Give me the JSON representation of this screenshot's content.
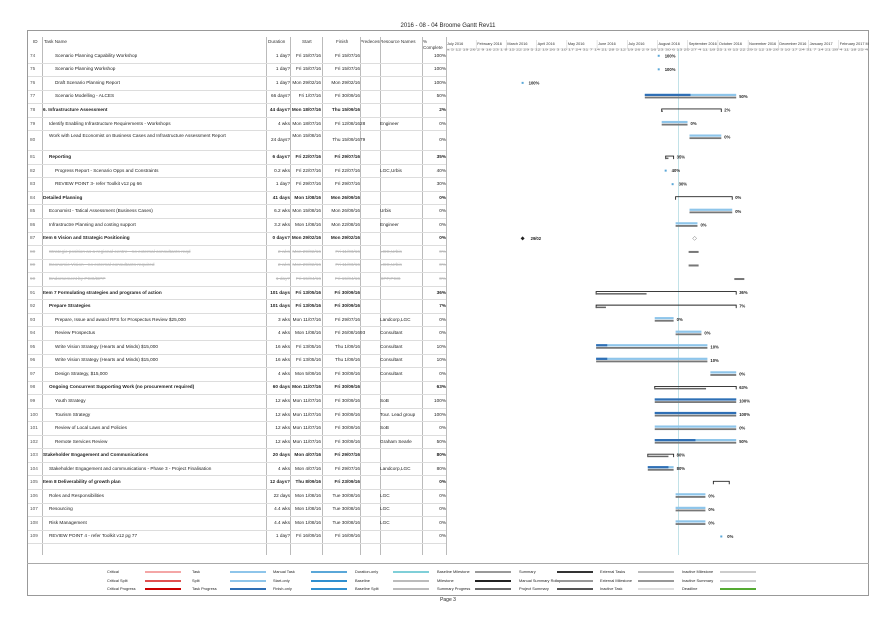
{
  "title": "2016 - 08 - 04 Broome Gantt Rev11",
  "columns": {
    "id": "ID",
    "name": "Task Name",
    "duration": "Duration",
    "start": "Start",
    "finish": "Finish",
    "predecessors": "Predecessors",
    "resources": "Resource Names",
    "pct": "% Complete"
  },
  "timescale": {
    "months": [
      "July 2016",
      "February 2016",
      "March 2016",
      "April 2016",
      "May 2016",
      "June 2016",
      "July 2016",
      "August 2016",
      "September 2016",
      "October 2016",
      "November 2016",
      "December 2016",
      "January 2017",
      "February 2017 M"
    ],
    "days": "s 5 12 19 26 2 9 16 23 1 8 15 22 29 5 12 19 26 3 10 17 24 31 7 14 21 28 5 12 19 26 2 9 16 23 30 6 13 20 27 4 11 18 25 1 8 15 22 29 5 12 19 26 3 10 17 24 31 7 14 21 28 4 11 18 25 4"
  },
  "rows": [
    {
      "id": "74",
      "name": "Scenario Planning Capability Workshop",
      "dur": "1 day?",
      "start": "Fri 15/07/16",
      "fin": "Fri 15/07/16",
      "pred": "",
      "res": "",
      "pct": "100%",
      "indent": 2,
      "style": "normal",
      "lbl": "100%"
    },
    {
      "id": "75",
      "name": "Scenario Planning Workshop",
      "dur": "1 day?",
      "start": "Fri 15/07/16",
      "fin": "Fri 15/07/16",
      "pred": "",
      "res": "",
      "pct": "100%",
      "indent": 2,
      "style": "normal",
      "lbl": "100%"
    },
    {
      "id": "76",
      "name": "Draft Scenario Planning Report",
      "dur": "1 day?",
      "start": "Mon 29/02/16",
      "fin": "Mon 29/02/16",
      "pred": "",
      "res": "",
      "pct": "100%",
      "indent": 2,
      "style": "normal",
      "lbl": "100%"
    },
    {
      "id": "77",
      "name": "Scenario Modelling - ALCES",
      "dur": "66 days?",
      "start": "Fri 1/07/16",
      "fin": "Fri 30/09/16",
      "pred": "",
      "res": "",
      "pct": "50%",
      "indent": 2,
      "style": "normal",
      "lbl": "50%"
    },
    {
      "id": "78",
      "name": "6. Infrastructure Assessment",
      "dur": "44 days?",
      "start": "Mon 18/07/16",
      "fin": "Thu 15/09/16",
      "pred": "",
      "res": "",
      "pct": "2%",
      "indent": 0,
      "style": "bold",
      "lbl": "2%"
    },
    {
      "id": "79",
      "name": "Identify Enabling Infrastructure Requirements - Workshops",
      "dur": "4 wks",
      "start": "Mon 18/07/16",
      "fin": "Fri 12/08/16",
      "pred": "28",
      "res": "Engineer",
      "pct": "0%",
      "indent": 1,
      "style": "normal",
      "lbl": "0%"
    },
    {
      "id": "80",
      "name": "Work with Lead Economist on Business Cases and Infrastructure Assessment Report",
      "dur": "24 days?",
      "start": "Mon 15/08/16",
      "fin": "Thu 15/09/16",
      "pred": "79",
      "res": "",
      "pct": "0%",
      "indent": 1,
      "style": "wrap",
      "lbl": "0%"
    },
    {
      "id": "81",
      "name": "Reporting",
      "dur": "6 days?",
      "start": "Fri 22/07/16",
      "fin": "Fri 29/07/16",
      "pred": "",
      "res": "",
      "pct": "35%",
      "indent": 1,
      "style": "bold",
      "lbl": "35%"
    },
    {
      "id": "82",
      "name": "Progress Report - Scenario Opps and Constraints",
      "dur": "0.2 wks",
      "start": "Fri 22/07/16",
      "fin": "Fri 22/07/16",
      "pred": "",
      "res": "LGC,Urbis",
      "pct": "40%",
      "indent": 2,
      "style": "normal",
      "lbl": "40%"
    },
    {
      "id": "83",
      "name": "REVIEW POINT 3- refer Toolkit v12 pg 66",
      "dur": "1 day?",
      "start": "Fri 29/07/16",
      "fin": "Fri 29/07/16",
      "pred": "",
      "res": "",
      "pct": "30%",
      "indent": 2,
      "style": "normal",
      "lbl": "30%"
    },
    {
      "id": "84",
      "name": "Detailed Planning",
      "dur": "41 days",
      "start": "Mon 1/08/16",
      "fin": "Mon 26/09/16",
      "pred": "",
      "res": "",
      "pct": "0%",
      "indent": 0,
      "style": "bold",
      "lbl": "0%"
    },
    {
      "id": "85",
      "name": "Economist - Tatical Assessment (Business Cases)",
      "dur": "6.2 wks",
      "start": "Mon 15/08/16",
      "fin": "Mon 26/09/16",
      "pred": "",
      "res": "Urbis",
      "pct": "0%",
      "indent": 1,
      "style": "normal",
      "lbl": "0%"
    },
    {
      "id": "86",
      "name": "Infrastructre Planning and costing support",
      "dur": "3.2 wks",
      "start": "Mon 1/08/16",
      "fin": "Mon 22/08/16",
      "pred": "",
      "res": "Engineer",
      "pct": "0%",
      "indent": 1,
      "style": "normal",
      "lbl": "0%"
    },
    {
      "id": "87",
      "name": "Item 6 Vision and Strategic Positioning",
      "dur": "0 days?",
      "start": "Mon 29/02/16",
      "fin": "Mon 29/02/16",
      "pred": "",
      "res": "",
      "pct": "0%",
      "indent": 0,
      "style": "bold",
      "lbl": "29/02"
    },
    {
      "id": "88",
      "name": "Strategic position as a regional centre - no external consultants reqd",
      "dur": "2 wks",
      "start": "Mon 29/02/16",
      "fin": "Fri 11/03/16",
      "pred": "",
      "res": "LGC,Urbis",
      "pct": "0%",
      "indent": 1,
      "style": "strike",
      "lbl": ""
    },
    {
      "id": "89",
      "name": "Economic Vision - no external consultants required",
      "dur": "2 wks",
      "start": "Mon 29/02/16",
      "fin": "Fri 11/03/16",
      "pred": "",
      "res": "LGC,Urbis",
      "pct": "0%",
      "indent": 1,
      "style": "strike",
      "lbl": ""
    },
    {
      "id": "90",
      "name": "Endorsement by PCG/DPP",
      "dur": "1 day?",
      "start": "Fri 15/04/16",
      "fin": "Fri 15/04/16",
      "pred": "",
      "res": "DPP,PCG",
      "pct": "0%",
      "indent": 1,
      "style": "strike",
      "lbl": ""
    },
    {
      "id": "91",
      "name": "Item 7 Formulating strategies and programs of action",
      "dur": "101 days",
      "start": "Fri 13/05/16",
      "fin": "Fri 30/09/16",
      "pred": "",
      "res": "",
      "pct": "36%",
      "indent": 0,
      "style": "bold",
      "lbl": "36%"
    },
    {
      "id": "92",
      "name": "Prepare Strategies",
      "dur": "101 days",
      "start": "Fri 13/05/16",
      "fin": "Fri 30/09/16",
      "pred": "",
      "res": "",
      "pct": "7%",
      "indent": 1,
      "style": "bold",
      "lbl": "7%"
    },
    {
      "id": "93",
      "name": "Prepare, Issue and award RFS for Prospectus Review $25,000",
      "dur": "3 wks",
      "start": "Mon 11/07/16",
      "fin": "Fri 29/07/16",
      "pred": "",
      "res": "Landcorp,LGC",
      "pct": "0%",
      "indent": 2,
      "style": "normal",
      "lbl": "0%"
    },
    {
      "id": "94",
      "name": "Review Prospectus",
      "dur": "4 wks",
      "start": "Mon 1/08/16",
      "fin": "Fri 26/08/16",
      "pred": "93",
      "res": "Consultant",
      "pct": "0%",
      "indent": 2,
      "style": "normal",
      "lbl": "0%"
    },
    {
      "id": "95",
      "name": "Write Vision Strategy (Hearts and Minds) $15,000",
      "dur": "16 wks",
      "start": "Fri 13/05/16",
      "fin": "Thu 1/09/16",
      "pred": "",
      "res": "Consultant",
      "pct": "10%",
      "indent": 2,
      "style": "normal",
      "lbl": "10%"
    },
    {
      "id": "96",
      "name": "Write Vision Strategy (Hearts and Minds) $15,000",
      "dur": "16 wks",
      "start": "Fri 13/05/16",
      "fin": "Thu 1/09/16",
      "pred": "",
      "res": "Consultant",
      "pct": "10%",
      "indent": 2,
      "style": "normal",
      "lbl": "10%"
    },
    {
      "id": "97",
      "name": "Design Strategy, $15,000",
      "dur": "4 wks",
      "start": "Mon 5/09/16",
      "fin": "Fri 30/09/16",
      "pred": "",
      "res": "Consultant",
      "pct": "0%",
      "indent": 2,
      "style": "normal",
      "lbl": "0%"
    },
    {
      "id": "98",
      "name": "Ongoing Concurrent Supporting Work (no procurement required)",
      "dur": "60 days",
      "start": "Mon 11/07/16",
      "fin": "Fri 30/09/16",
      "pred": "",
      "res": "",
      "pct": "63%",
      "indent": 1,
      "style": "bold",
      "lbl": "63%"
    },
    {
      "id": "99",
      "name": "Youth Strategy",
      "dur": "12 wks",
      "start": "Mon 11/07/16",
      "fin": "Fri 30/09/16",
      "pred": "",
      "res": "SoB",
      "pct": "100%",
      "indent": 2,
      "style": "normal",
      "lbl": "100%"
    },
    {
      "id": "100",
      "name": "Tourism Strategy",
      "dur": "12 wks",
      "start": "Mon 11/07/16",
      "fin": "Fri 30/09/16",
      "pred": "",
      "res": "Tour. Lead group",
      "pct": "100%",
      "indent": 2,
      "style": "normal",
      "lbl": "100%"
    },
    {
      "id": "101",
      "name": "Review of Local Laws and Policies",
      "dur": "12 wks",
      "start": "Mon 11/07/16",
      "fin": "Fri 30/09/16",
      "pred": "",
      "res": "SoB",
      "pct": "0%",
      "indent": 2,
      "style": "normal",
      "lbl": "0%"
    },
    {
      "id": "102",
      "name": "Remote Services Review",
      "dur": "12 wks",
      "start": "Mon 11/07/16",
      "fin": "Fri 30/09/16",
      "pred": "",
      "res": "Graham Searle",
      "pct": "50%",
      "indent": 2,
      "style": "normal",
      "lbl": "50%"
    },
    {
      "id": "103",
      "name": "Stakeholder Engagement and Communications",
      "dur": "20 days",
      "start": "Mon 4/07/16",
      "fin": "Fri 29/07/16",
      "pred": "",
      "res": "",
      "pct": "80%",
      "indent": 0,
      "style": "bold",
      "lbl": "80%"
    },
    {
      "id": "104",
      "name": "Stakeholder Engagement and communications - Phase 3 - Project Finalisation",
      "dur": "4 wks",
      "start": "Mon 4/07/16",
      "fin": "Fri 29/07/16",
      "pred": "",
      "res": "Landcorp,LGC",
      "pct": "80%",
      "indent": 1,
      "style": "normal",
      "lbl": "80%"
    },
    {
      "id": "105",
      "name": "Item 8 Deliverability of growth plan",
      "dur": "12 days?",
      "start": "Thu 8/09/16",
      "fin": "Fri 23/09/16",
      "pred": "",
      "res": "",
      "pct": "0%",
      "indent": 0,
      "style": "bold",
      "lbl": ""
    },
    {
      "id": "106",
      "name": "Roles and Responsibilities",
      "dur": "22 days",
      "start": "Mon 1/08/16",
      "fin": "Tue 30/08/16",
      "pred": "",
      "res": "LGC",
      "pct": "0%",
      "indent": 1,
      "style": "normal",
      "lbl": "0%"
    },
    {
      "id": "107",
      "name": "Resourcing",
      "dur": "4.4 wks",
      "start": "Mon 1/08/16",
      "fin": "Tue 30/08/16",
      "pred": "",
      "res": "LGC",
      "pct": "0%",
      "indent": 1,
      "style": "normal",
      "lbl": "0%"
    },
    {
      "id": "108",
      "name": "Risk Management",
      "dur": "4.4 wks",
      "start": "Mon 1/08/16",
      "fin": "Tue 30/08/16",
      "pred": "",
      "res": "LGC",
      "pct": "0%",
      "indent": 1,
      "style": "normal",
      "lbl": "0%"
    },
    {
      "id": "109",
      "name": "REVIEW POINT 4 - refer Toolkit v12 pg 77",
      "dur": "1 day?",
      "start": "Fri 16/09/16",
      "fin": "Fri 16/09/16",
      "pred": "",
      "res": "",
      "pct": "0%",
      "indent": 1,
      "style": "normal",
      "lbl": "0%"
    }
  ],
  "legend": [
    {
      "label": "Critical",
      "color": "#f4a6a6"
    },
    {
      "label": "Critical Split",
      "color": "#e05050"
    },
    {
      "label": "Critical Progress",
      "color": "#cc0000"
    },
    {
      "label": "Task",
      "color": "#8ec5ea"
    },
    {
      "label": "Split",
      "color": "#8ec5ea"
    },
    {
      "label": "Task Progress",
      "color": "#2f6fb5"
    },
    {
      "label": "Manual Task",
      "color": "#5aa7d8"
    },
    {
      "label": "Start-only",
      "color": "#2f8fd0"
    },
    {
      "label": "Finish-only",
      "color": "#2f8fd0"
    },
    {
      "label": "Duration-only",
      "color": "#7fcfd8"
    },
    {
      "label": "Baseline",
      "color": "#bbbbbb"
    },
    {
      "label": "Baseline Split",
      "color": "#bbbbbb"
    },
    {
      "label": "Baseline Milestone",
      "color": "#999999"
    },
    {
      "label": "Milestone",
      "color": "#222222"
    },
    {
      "label": "Summary Progress",
      "color": "#666666"
    },
    {
      "label": "Summary",
      "color": "#333333"
    },
    {
      "label": "Manual Summary Rollup",
      "color": "#999999"
    },
    {
      "label": "Project Summary",
      "color": "#555555"
    },
    {
      "label": "External Tasks",
      "color": "#bbbbbb"
    },
    {
      "label": "External Milestone",
      "color": "#999999"
    },
    {
      "label": "Inactive Task",
      "color": "#dddddd"
    },
    {
      "label": "Inactive Milestone",
      "color": "#cccccc"
    },
    {
      "label": "Inactive Summary",
      "color": "#cccccc"
    },
    {
      "label": "Deadline",
      "color": "#55aa33"
    }
  ],
  "page": "Page 3"
}
